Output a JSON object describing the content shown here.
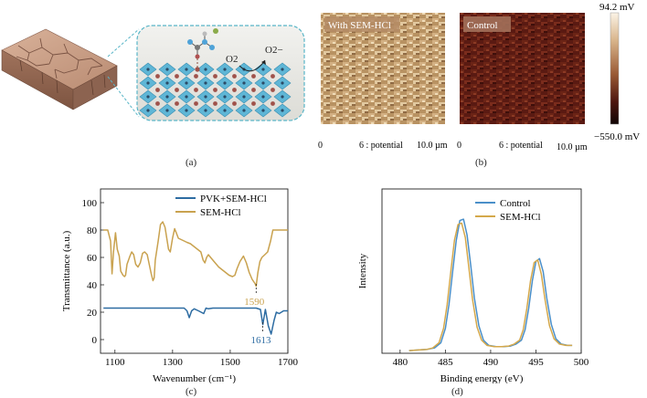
{
  "panel_a": {
    "caption": "(a)",
    "reactant_label": "O2",
    "product_label": "O2−"
  },
  "panel_b": {
    "caption": "(b)",
    "left_map": {
      "label": "With SEM-HCl",
      "axis_start": "0",
      "axis_mid": "6 : potential",
      "axis_end": "10.0 µm"
    },
    "right_map": {
      "label": "Control",
      "axis_start": "0",
      "axis_mid": "6 : potential",
      "axis_end": "10.0 µm"
    },
    "colorbar": {
      "max_label": "94.2 mV",
      "min_label": "−550.0 mV"
    }
  },
  "panel_c": {
    "caption": "(c)"
  },
  "panel_d": {
    "caption": "(d)"
  },
  "chart_data": [
    {
      "type": "line",
      "panel": "c",
      "xlabel": "Wavenumber (cm⁻¹)",
      "ylabel": "Transmittance (a.u.)",
      "xlim": [
        1050,
        1700
      ],
      "ylim": [
        -10,
        110
      ],
      "xticks": [
        1100,
        1300,
        1500,
        1700
      ],
      "yticks": [
        0,
        20,
        40,
        60,
        80,
        100
      ],
      "series": [
        {
          "name": "PVK+SEM-HCl",
          "color": "#2d6ca2",
          "x": [
            1060,
            1200,
            1300,
            1340,
            1350,
            1358,
            1366,
            1375,
            1390,
            1408,
            1416,
            1424,
            1440,
            1500,
            1560,
            1590,
            1605,
            1613,
            1622,
            1632,
            1642,
            1652,
            1660,
            1670,
            1685,
            1700
          ],
          "y": [
            23,
            23,
            23,
            23,
            21,
            16,
            21,
            22.5,
            21,
            19,
            23,
            22.5,
            23,
            23,
            23,
            23,
            22,
            11,
            22,
            10,
            4,
            14,
            20,
            19,
            21,
            21
          ]
        },
        {
          "name": "SEM-HCl",
          "color": "#c9a24f",
          "x": [
            1060,
            1075,
            1085,
            1090,
            1095,
            1102,
            1108,
            1115,
            1120,
            1128,
            1133,
            1137,
            1142,
            1152,
            1158,
            1165,
            1172,
            1180,
            1188,
            1196,
            1203,
            1212,
            1220,
            1226,
            1232,
            1236,
            1240,
            1250,
            1258,
            1266,
            1274,
            1280,
            1286,
            1292,
            1300,
            1307,
            1313,
            1320,
            1340,
            1350,
            1362,
            1374,
            1386,
            1398,
            1406,
            1412,
            1418,
            1424,
            1436,
            1448,
            1460,
            1472,
            1484,
            1496,
            1508,
            1516,
            1524,
            1534,
            1546,
            1556,
            1566,
            1576,
            1586,
            1590,
            1596,
            1603,
            1610,
            1620,
            1630,
            1640,
            1648,
            1654,
            1658,
            1664,
            1672,
            1685,
            1700
          ],
          "y": [
            80,
            80,
            72,
            48,
            64,
            78,
            66,
            61,
            50,
            47,
            46,
            47,
            55,
            61,
            64,
            62,
            55,
            53,
            56,
            63,
            64,
            62,
            54,
            48,
            43,
            45,
            58,
            72,
            84,
            86,
            82,
            74,
            66,
            64,
            74,
            81,
            78,
            74,
            72,
            71,
            70,
            68,
            66,
            64,
            58,
            56,
            60,
            62,
            59,
            56,
            53,
            51,
            49,
            47,
            46,
            47,
            52,
            57,
            61,
            56,
            49,
            44,
            41,
            39,
            49,
            57,
            60,
            62,
            64,
            72,
            80,
            80,
            80,
            80,
            80,
            80,
            80
          ]
        }
      ],
      "annotations": [
        {
          "text": "1590",
          "x": 1590,
          "y": 42,
          "color": "#c9a24f"
        },
        {
          "text": "1613",
          "x": 1613,
          "y": 14,
          "color": "#2d6ca2"
        }
      ]
    },
    {
      "type": "line",
      "panel": "d",
      "xlabel": "Binding energy (eV)",
      "ylabel": "Intensity",
      "xlim": [
        478,
        500
      ],
      "ylim": [
        0,
        1.25
      ],
      "xticks": [
        480,
        485,
        490,
        495,
        500
      ],
      "series": [
        {
          "name": "Control",
          "color": "#4a8fc9",
          "x": [
            481,
            482,
            483,
            483.8,
            484.5,
            485,
            485.4,
            485.8,
            486.2,
            486.6,
            487,
            487.4,
            487.8,
            488.2,
            488.7,
            489.2,
            489.8,
            490.6,
            491.4,
            492.2,
            492.8,
            493.4,
            493.8,
            494.2,
            494.6,
            495,
            495.4,
            495.8,
            496.2,
            496.7,
            497.2,
            497.8,
            498.5,
            499
          ],
          "y": [
            0.02,
            0.025,
            0.03,
            0.04,
            0.08,
            0.19,
            0.37,
            0.62,
            0.86,
            1.01,
            1.02,
            0.9,
            0.67,
            0.42,
            0.21,
            0.1,
            0.06,
            0.05,
            0.05,
            0.055,
            0.07,
            0.1,
            0.18,
            0.34,
            0.55,
            0.7,
            0.72,
            0.62,
            0.42,
            0.22,
            0.11,
            0.07,
            0.06,
            0.06
          ]
        },
        {
          "name": "SEM-HCl",
          "color": "#d4a84b",
          "x": [
            481,
            482,
            483,
            483.6,
            484.3,
            484.8,
            485.2,
            485.6,
            486,
            486.4,
            486.8,
            487.2,
            487.6,
            488,
            488.5,
            489,
            489.6,
            490.4,
            491.2,
            492,
            492.6,
            493.2,
            493.6,
            494,
            494.4,
            494.8,
            495.2,
            495.6,
            496,
            496.5,
            497,
            497.6,
            498.3,
            499
          ],
          "y": [
            0.02,
            0.025,
            0.03,
            0.04,
            0.08,
            0.19,
            0.37,
            0.62,
            0.86,
            0.98,
            0.99,
            0.88,
            0.65,
            0.41,
            0.2,
            0.1,
            0.06,
            0.05,
            0.05,
            0.055,
            0.07,
            0.1,
            0.18,
            0.34,
            0.55,
            0.69,
            0.71,
            0.6,
            0.41,
            0.21,
            0.11,
            0.07,
            0.06,
            0.06
          ]
        }
      ]
    }
  ]
}
